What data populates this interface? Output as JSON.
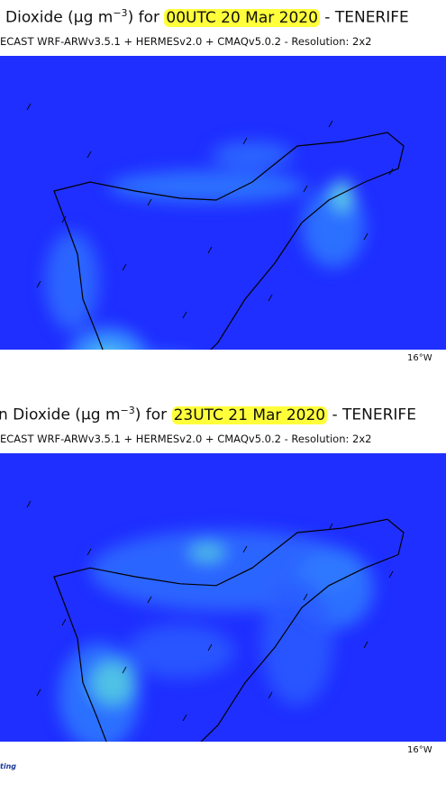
{
  "panels": [
    {
      "title_prefix": "Dioxide (μg m",
      "title_exponent": "−3",
      "title_middle": ") for ",
      "title_time": "00UTC 20 Mar 2020",
      "title_suffix": " - TENERIFE",
      "subtitle": "ECAST  WRF-ARWv3.5.1 + HERMESv2.0 + CMAQv5.0.2 - Resolution: 2x2",
      "lon_label": "16°W"
    },
    {
      "title_prefix": "n Dioxide (μg m",
      "title_exponent": "−3",
      "title_middle": ") for ",
      "title_time": "23UTC 21 Mar 2020",
      "title_suffix": " - TENERIFE",
      "subtitle": "ECAST  WRF-ARWv3.5.1 + HERMESv2.0 + CMAQv5.0.2 - Resolution: 2x2",
      "lon_label": "16°W"
    }
  ],
  "footer": {
    "logo_text": "ting"
  }
}
